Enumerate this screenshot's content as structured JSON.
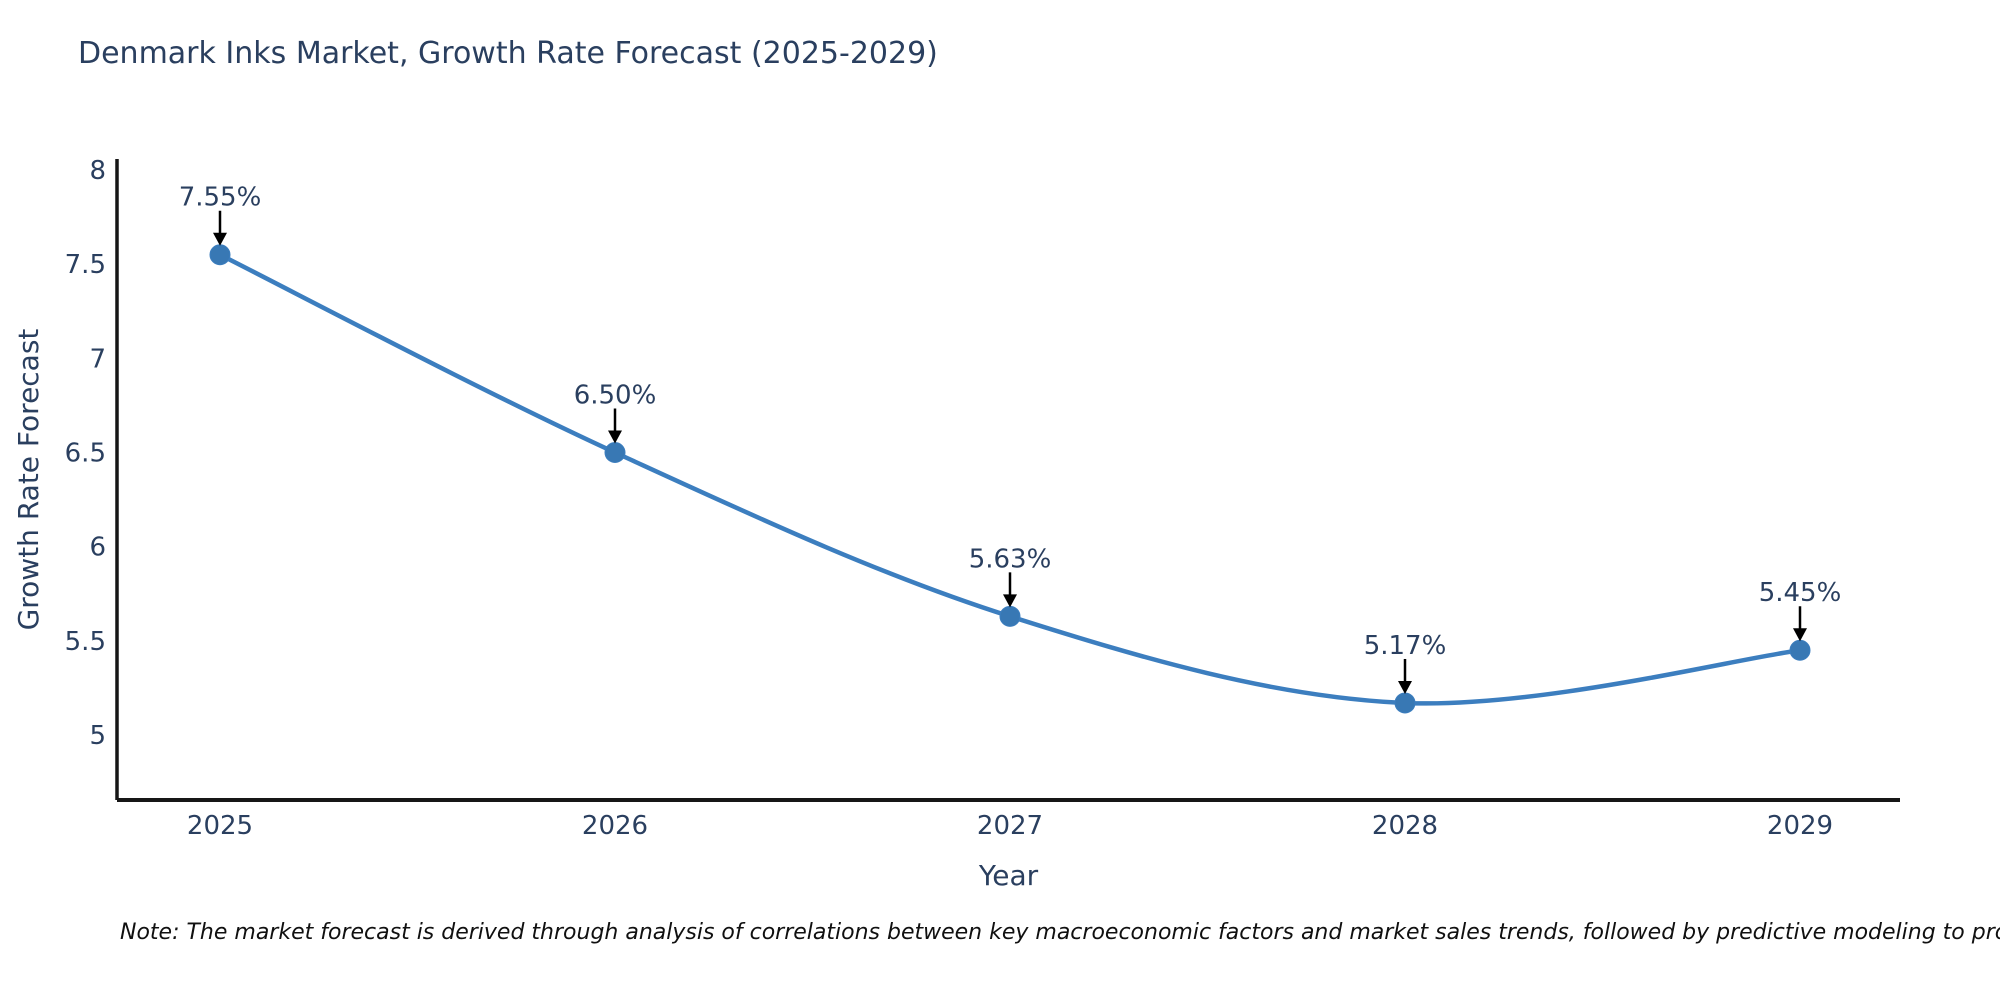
{
  "page": {
    "background_color": "#ffffff"
  },
  "chart_data": {
    "type": "line",
    "title": "Denmark Inks Market, Growth Rate Forecast (2025-2029)",
    "xlabel": "Year",
    "ylabel": "Growth Rate Forecast",
    "categories": [
      "2025",
      "2026",
      "2027",
      "2028",
      "2029"
    ],
    "series": [
      {
        "name": "Growth Rate Forecast",
        "values": [
          7.55,
          6.5,
          5.63,
          5.17,
          5.45
        ]
      }
    ],
    "point_labels": [
      "7.55%",
      "6.50%",
      "5.63%",
      "5.17%",
      "5.45%"
    ],
    "yticks": [
      8,
      7.5,
      7,
      6.5,
      6,
      5.5,
      5
    ],
    "ylim": [
      4.66,
      8.06
    ],
    "grid": false,
    "legend": "none",
    "smooth": true,
    "line_color": "#3c7ebf",
    "marker_color": "#3878b4",
    "axis_color": "#161616",
    "text_color": "#2a3f5f",
    "annotation_color": "#2a3f5f",
    "arrow_color": "#000000"
  },
  "note": {
    "text": "Note: The market forecast is derived through analysis of correlations between key macroeconomic factors and market sales trends, followed by predictive modeling to project future sales"
  }
}
